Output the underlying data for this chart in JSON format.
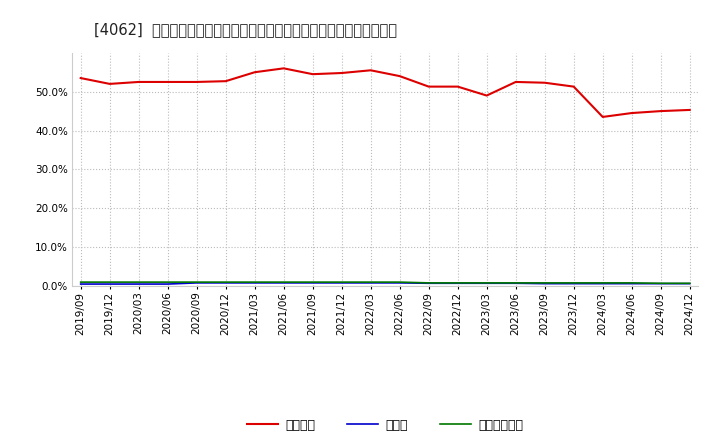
{
  "title": "[4062]  自己資本、のれん、繰延税金資産の総資産に対する比率の推移",
  "x_labels": [
    "2019/09",
    "2019/12",
    "2020/03",
    "2020/06",
    "2020/09",
    "2020/12",
    "2021/03",
    "2021/06",
    "2021/09",
    "2021/12",
    "2022/03",
    "2022/06",
    "2022/09",
    "2022/12",
    "2023/03",
    "2023/06",
    "2023/09",
    "2023/12",
    "2024/03",
    "2024/06",
    "2024/09",
    "2024/12"
  ],
  "jiko_shihon": [
    53.5,
    52.0,
    52.5,
    52.5,
    52.5,
    52.7,
    55.0,
    56.0,
    54.5,
    54.8,
    55.5,
    54.0,
    51.3,
    51.3,
    49.0,
    52.5,
    52.3,
    51.3,
    43.5,
    44.5,
    45.0,
    45.3
  ],
  "noren": [
    0.5,
    0.5,
    0.5,
    0.5,
    0.8,
    0.8,
    0.8,
    0.8,
    0.8,
    0.8,
    0.8,
    0.8,
    0.7,
    0.7,
    0.7,
    0.7,
    0.6,
    0.6,
    0.6,
    0.6,
    0.6,
    0.6
  ],
  "kuenzeicho": [
    1.0,
    1.0,
    1.0,
    1.0,
    1.0,
    1.0,
    1.0,
    1.0,
    1.0,
    1.0,
    1.0,
    1.0,
    0.8,
    0.8,
    0.8,
    0.8,
    0.8,
    0.8,
    0.8,
    0.8,
    0.7,
    0.7
  ],
  "line_color_jiko": "#dd0000",
  "line_color_noren": "#0000cc",
  "line_color_kuenzeicho": "#007700",
  "bg_color": "#ffffff",
  "plot_bg_color": "#ffffff",
  "grid_color": "#bbbbbb",
  "legend_labels": [
    "自己資本",
    "のれん",
    "繰延税金資産"
  ],
  "ylim": [
    0,
    60
  ],
  "yticks": [
    0,
    10,
    20,
    30,
    40,
    50
  ],
  "title_fontsize": 10.5,
  "tick_fontsize": 7.5,
  "legend_fontsize": 9
}
